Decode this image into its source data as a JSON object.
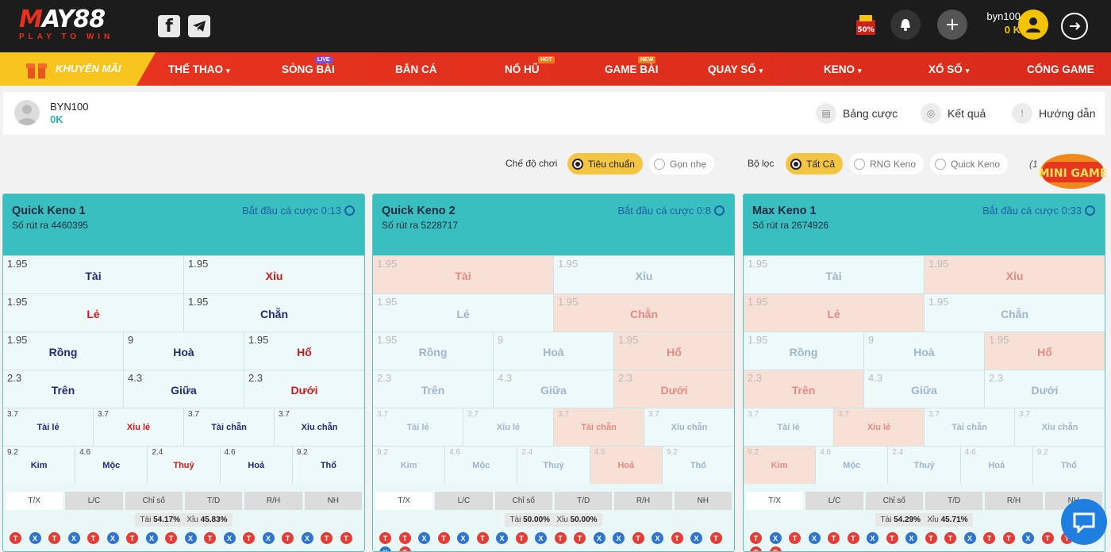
{
  "header": {
    "logo_main_1": "M",
    "logo_main_2": "AY88",
    "logo_sub": "PLAY TO WIN",
    "promo_badge": "50%",
    "username": "byn100",
    "balance": "0 K",
    "social": [
      "facebook-icon",
      "telegram-icon"
    ]
  },
  "nav": {
    "promo": "KHUYẾN MÃI",
    "items": [
      {
        "label": "THỂ THAO",
        "chev": "▾",
        "badge": ""
      },
      {
        "label": "SÒNG BÀI",
        "chev": "",
        "badge": "LIVE"
      },
      {
        "label": "BẮN CÁ",
        "chev": "",
        "badge": ""
      },
      {
        "label": "NỔ HŨ",
        "chev": "",
        "badge": "HOT"
      },
      {
        "label": "GAME BÀI",
        "chev": "",
        "badge": "NEW"
      },
      {
        "label": "QUAY SỐ",
        "chev": "▾",
        "badge": ""
      },
      {
        "label": "KENO",
        "chev": "▾",
        "badge": ""
      },
      {
        "label": "XỔ SỐ",
        "chev": "▾",
        "badge": ""
      },
      {
        "label": "CỔNG GAME",
        "chev": "",
        "badge": ""
      }
    ]
  },
  "user": {
    "name": "BYN100",
    "balance": "0K"
  },
  "tools": {
    "bets": "Bảng cược",
    "results": "Kết quả",
    "guide": "Hướng dẫn"
  },
  "filters": {
    "mode_label": "Chế độ chơi",
    "mode_options": [
      "Tiêu chuẩn",
      "Gọn nhẹ"
    ],
    "filter_label": "Bộ lọc",
    "filter_options": [
      "Tất Cả",
      "RNG Keno",
      "Quick Keno"
    ],
    "prefix": "(1",
    "mini_game": "MINI GAME"
  },
  "colors": {
    "accent": "#39bfbf",
    "nav": "#e8351f",
    "yellow": "#f5c400"
  },
  "cards": [
    {
      "title": "Quick Keno 1",
      "draw": "Số rút ra 4460395",
      "timer": "Bắt đầu cá cược 0:13",
      "rows": [
        [
          {
            "o": "1.95",
            "n": "Tài",
            "c": "blue"
          },
          {
            "o": "1.95",
            "n": "Xỉu",
            "c": "red"
          }
        ],
        [
          {
            "o": "1.95",
            "n": "Lẻ",
            "c": "red"
          },
          {
            "o": "1.95",
            "n": "Chẵn",
            "c": "blue"
          }
        ],
        [
          {
            "o": "1.95",
            "n": "Rồng",
            "c": "blue"
          },
          {
            "o": "9",
            "n": "Hoà",
            "c": "blue"
          },
          {
            "o": "1.95",
            "n": "Hổ",
            "c": "red"
          }
        ],
        [
          {
            "o": "2.3",
            "n": "Trên",
            "c": "blue"
          },
          {
            "o": "4.3",
            "n": "Giữa",
            "c": "blue"
          },
          {
            "o": "2.3",
            "n": "Dưới",
            "c": "red"
          }
        ],
        [
          {
            "o": "3.7",
            "n": "Tài lẻ",
            "c": "blue"
          },
          {
            "o": "3.7",
            "n": "Xỉu lẻ",
            "c": "red"
          },
          {
            "o": "3.7",
            "n": "Tài chẵn",
            "c": "blue"
          },
          {
            "o": "3.7",
            "n": "Xỉu chẵn",
            "c": "blue"
          }
        ],
        [
          {
            "o": "9.2",
            "n": "Kim",
            "c": "blue"
          },
          {
            "o": "4.6",
            "n": "Mộc",
            "c": "blue"
          },
          {
            "o": "2.4",
            "n": "Thuỷ",
            "c": "red"
          },
          {
            "o": "4.6",
            "n": "Hoả",
            "c": "blue"
          },
          {
            "o": "9.2",
            "n": "Thổ",
            "c": "blue"
          }
        ]
      ],
      "tai": "54.17%",
      "xiu": "45.83%",
      "balls": "TXTXTXTXTXTXTXTXTT"
    },
    {
      "title": "Quick Keno 2",
      "draw": "Số rút ra 5228717",
      "timer": "Bắt đầu cá cược 0:8",
      "rows": [
        [
          {
            "o": "1.95",
            "n": "Tài",
            "c": "red",
            "h": 1
          },
          {
            "o": "1.95",
            "n": "Xỉu",
            "c": "blue"
          }
        ],
        [
          {
            "o": "1.95",
            "n": "Lẻ",
            "c": "blue"
          },
          {
            "o": "1.95",
            "n": "Chẵn",
            "c": "red",
            "h": 1
          }
        ],
        [
          {
            "o": "1.95",
            "n": "Rồng",
            "c": "blue"
          },
          {
            "o": "9",
            "n": "Hoà",
            "c": "blue"
          },
          {
            "o": "1.95",
            "n": "Hổ",
            "c": "red",
            "h": 1
          }
        ],
        [
          {
            "o": "2.3",
            "n": "Trên",
            "c": "blue"
          },
          {
            "o": "4.3",
            "n": "Giữa",
            "c": "blue"
          },
          {
            "o": "2.3",
            "n": "Dưới",
            "c": "red",
            "h": 1
          }
        ],
        [
          {
            "o": "3.7",
            "n": "Tài lẻ",
            "c": "blue"
          },
          {
            "o": "3.7",
            "n": "Xỉu lẻ",
            "c": "blue"
          },
          {
            "o": "3.7",
            "n": "Tài chẵn",
            "c": "red",
            "h": 1
          },
          {
            "o": "3.7",
            "n": "Xỉu chẵn",
            "c": "blue"
          }
        ],
        [
          {
            "o": "9.2",
            "n": "Kim",
            "c": "blue"
          },
          {
            "o": "4.6",
            "n": "Mộc",
            "c": "blue"
          },
          {
            "o": "2.4",
            "n": "Thuỷ",
            "c": "blue"
          },
          {
            "o": "4.6",
            "n": "Hoả",
            "c": "red",
            "h": 1
          },
          {
            "o": "9.2",
            "n": "Thổ",
            "c": "blue"
          }
        ]
      ],
      "tai": "50.00%",
      "xiu": "50.00%",
      "balls": "TTXTXTXTXTTXXTXTXTXT"
    },
    {
      "title": "Max Keno 1",
      "draw": "Số rút ra 2674926",
      "timer": "Bắt đầu cá cược 0:33",
      "rows": [
        [
          {
            "o": "1.95",
            "n": "Tài",
            "c": "blue"
          },
          {
            "o": "1.95",
            "n": "Xỉu",
            "c": "red",
            "h": 1
          }
        ],
        [
          {
            "o": "1.95",
            "n": "Lẻ",
            "c": "red",
            "h": 1
          },
          {
            "o": "1.95",
            "n": "Chẵn",
            "c": "blue"
          }
        ],
        [
          {
            "o": "1.95",
            "n": "Rồng",
            "c": "blue"
          },
          {
            "o": "9",
            "n": "Hoà",
            "c": "blue"
          },
          {
            "o": "1.95",
            "n": "Hổ",
            "c": "red",
            "h": 1
          }
        ],
        [
          {
            "o": "2.3",
            "n": "Trên",
            "c": "red",
            "h": 1
          },
          {
            "o": "4.3",
            "n": "Giữa",
            "c": "blue"
          },
          {
            "o": "2.3",
            "n": "Dưới",
            "c": "blue"
          }
        ],
        [
          {
            "o": "3.7",
            "n": "Tài lẻ",
            "c": "blue"
          },
          {
            "o": "3.7",
            "n": "Xỉu lẻ",
            "c": "red",
            "h": 1
          },
          {
            "o": "3.7",
            "n": "Tài chẵn",
            "c": "blue"
          },
          {
            "o": "3.7",
            "n": "Xỉu chẵn",
            "c": "blue"
          }
        ],
        [
          {
            "o": "9.2",
            "n": "Kim",
            "c": "red",
            "h": 1
          },
          {
            "o": "4.6",
            "n": "Mộc",
            "c": "blue"
          },
          {
            "o": "2.4",
            "n": "Thuỷ",
            "c": "blue"
          },
          {
            "o": "4.6",
            "n": "Hoả",
            "c": "blue"
          },
          {
            "o": "9.2",
            "n": "Thổ",
            "c": "blue"
          }
        ]
      ],
      "tai": "54.29%",
      "xiu": "45.71%",
      "balls": "TXTXTTXTXTTXTTXTTXTT"
    }
  ],
  "tab_labels": [
    "T/X",
    "L/C",
    "Chỉ số",
    "T/D",
    "R/H",
    "NH"
  ],
  "pct_labels": {
    "tai": "Tài",
    "xiu": "Xỉu"
  }
}
